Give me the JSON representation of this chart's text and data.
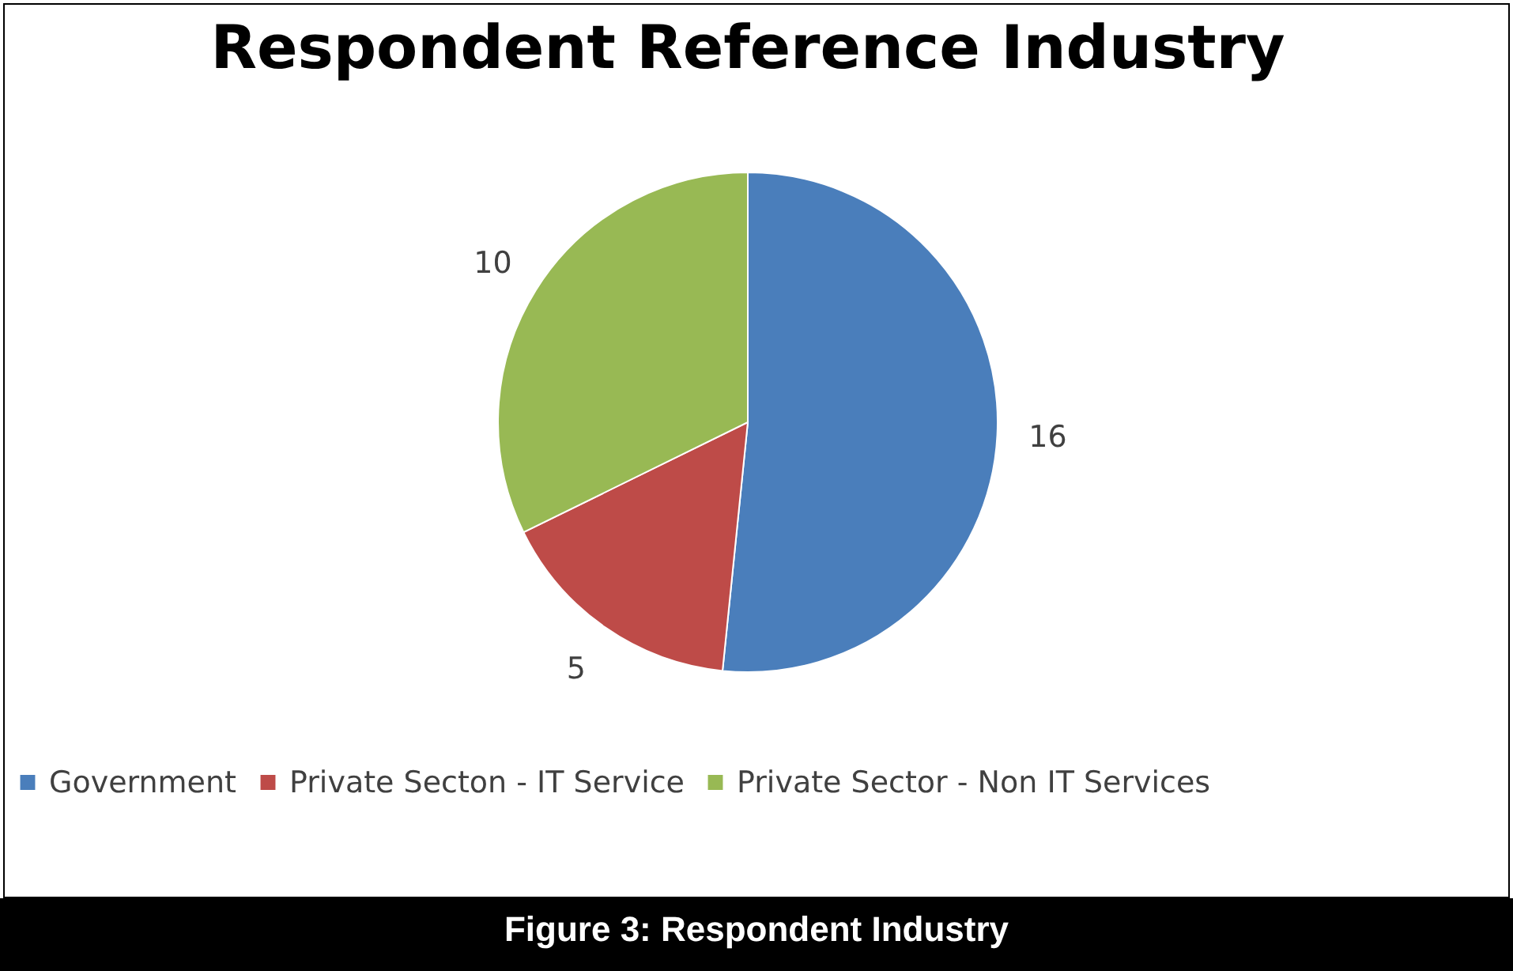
{
  "chart_data": {
    "type": "pie",
    "title": "Respondent Reference Industry",
    "categories": [
      "Government",
      "Private Secton - IT Service",
      "Private Sector - Non IT Services"
    ],
    "values": [
      16,
      5,
      10
    ],
    "colors": [
      "#4a7ebb",
      "#be4b48",
      "#98b954"
    ],
    "data_labels": true,
    "legend": "bottom",
    "annotations": [
      "Figure 3: Respondent Industry"
    ]
  }
}
